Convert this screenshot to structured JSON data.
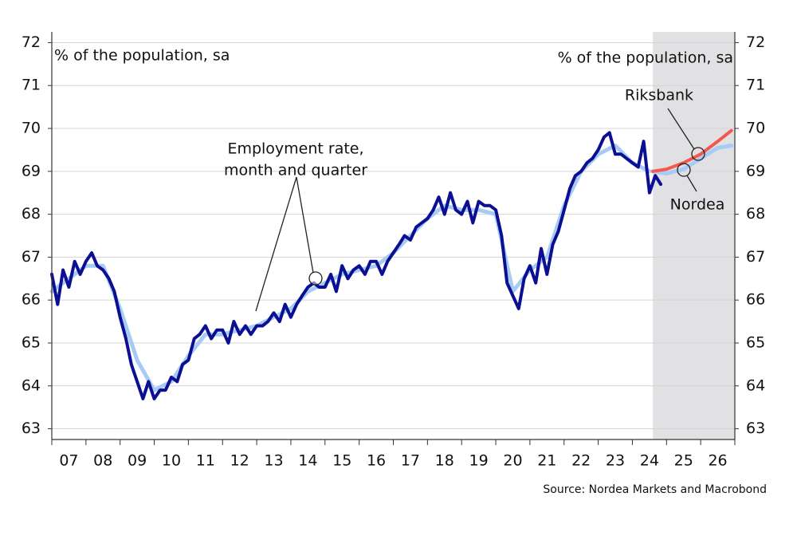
{
  "chart_data": {
    "type": "line",
    "ylabel": "% of the population, sa",
    "y2label": "% of the population, sa",
    "source": "Source: Nordea Markets and Macrobond",
    "annotations": [
      {
        "text": [
          "Employment rate,",
          "month and quarter"
        ]
      },
      {
        "text": [
          "Riksbank"
        ]
      },
      {
        "text": [
          "Nordea"
        ]
      }
    ],
    "shade": [
      2024.6,
      2027
    ],
    "shade_color": "#e1e0e3",
    "grid": true,
    "xlim": [
      2007,
      2027
    ],
    "xticks": [
      {
        "value": 2007,
        "label": "07"
      },
      {
        "value": 2008,
        "label": "08"
      },
      {
        "value": 2009,
        "label": "09"
      },
      {
        "value": 2010,
        "label": "10"
      },
      {
        "value": 2011,
        "label": "11"
      },
      {
        "value": 2012,
        "label": "12"
      },
      {
        "value": 2013,
        "label": "13"
      },
      {
        "value": 2014,
        "label": "14"
      },
      {
        "value": 2015,
        "label": "15"
      },
      {
        "value": 2016,
        "label": "16"
      },
      {
        "value": 2017,
        "label": "17"
      },
      {
        "value": 2018,
        "label": "18"
      },
      {
        "value": 2019,
        "label": "19"
      },
      {
        "value": 2020,
        "label": "20"
      },
      {
        "value": 2021,
        "label": "21"
      },
      {
        "value": 2022,
        "label": "22"
      },
      {
        "value": 2023,
        "label": "23"
      },
      {
        "value": 2024,
        "label": "24"
      },
      {
        "value": 2025,
        "label": "25"
      },
      {
        "value": 2026,
        "label": "26"
      }
    ],
    "ylim": [
      62.75,
      72.25
    ],
    "yticks": [
      63,
      64,
      65,
      66,
      67,
      68,
      69,
      70,
      71,
      72
    ],
    "y2lim": [
      62.75,
      72.25
    ],
    "y2ticks": [
      63,
      64,
      65,
      66,
      67,
      68,
      69,
      70,
      71,
      72
    ],
    "series": [
      {
        "color": "#a8cbf5",
        "width": 5,
        "x": [
          2007.0,
          2007.5,
          2008.0,
          2008.5,
          2009.0,
          2009.5,
          2010.0,
          2010.5,
          2011.0,
          2011.5,
          2012.0,
          2012.5,
          2013.0,
          2013.5,
          2014.0,
          2014.5,
          2015.0,
          2015.5,
          2016.0,
          2016.5,
          2017.0,
          2017.5,
          2018.0,
          2018.5,
          2019.0,
          2019.5,
          2020.0,
          2020.5,
          2021.0,
          2021.5,
          2022.0,
          2022.5,
          2023.0,
          2023.5,
          2024.0,
          2024.5
        ],
        "values": [
          66.2,
          66.5,
          66.8,
          66.8,
          65.8,
          64.6,
          63.9,
          64.1,
          64.7,
          65.2,
          65.2,
          65.3,
          65.4,
          65.6,
          65.8,
          66.2,
          66.4,
          66.6,
          66.7,
          66.8,
          67.1,
          67.5,
          67.9,
          68.2,
          68.1,
          68.1,
          68.0,
          66.2,
          66.7,
          67.0,
          68.2,
          69.0,
          69.4,
          69.6,
          69.2,
          69.0
        ]
      },
      {
        "color": "#0b0f92",
        "width": 4,
        "x": [
          2007.0,
          2007.17,
          2007.33,
          2007.5,
          2007.67,
          2007.83,
          2008.0,
          2008.17,
          2008.33,
          2008.5,
          2008.67,
          2008.83,
          2009.0,
          2009.17,
          2009.33,
          2009.5,
          2009.67,
          2009.83,
          2010.0,
          2010.17,
          2010.33,
          2010.5,
          2010.67,
          2010.83,
          2011.0,
          2011.17,
          2011.33,
          2011.5,
          2011.67,
          2011.83,
          2012.0,
          2012.17,
          2012.33,
          2012.5,
          2012.67,
          2012.83,
          2013.0,
          2013.17,
          2013.33,
          2013.5,
          2013.67,
          2013.83,
          2014.0,
          2014.17,
          2014.33,
          2014.5,
          2014.67,
          2014.83,
          2015.0,
          2015.17,
          2015.33,
          2015.5,
          2015.67,
          2015.83,
          2016.0,
          2016.17,
          2016.33,
          2016.5,
          2016.67,
          2016.83,
          2017.0,
          2017.17,
          2017.33,
          2017.5,
          2017.67,
          2017.83,
          2018.0,
          2018.17,
          2018.33,
          2018.5,
          2018.67,
          2018.83,
          2019.0,
          2019.17,
          2019.33,
          2019.5,
          2019.67,
          2019.83,
          2020.0,
          2020.17,
          2020.33,
          2020.5,
          2020.67,
          2020.83,
          2021.0,
          2021.17,
          2021.33,
          2021.5,
          2021.67,
          2021.83,
          2022.0,
          2022.17,
          2022.33,
          2022.5,
          2022.67,
          2022.83,
          2023.0,
          2023.17,
          2023.33,
          2023.5,
          2023.67,
          2023.83,
          2024.0,
          2024.17,
          2024.33,
          2024.5,
          2024.67,
          2024.83
        ],
        "values": [
          66.6,
          65.9,
          66.7,
          66.3,
          66.9,
          66.6,
          66.9,
          67.1,
          66.8,
          66.7,
          66.5,
          66.2,
          65.6,
          65.1,
          64.5,
          64.1,
          63.7,
          64.1,
          63.7,
          63.9,
          63.9,
          64.2,
          64.1,
          64.5,
          64.6,
          65.1,
          65.2,
          65.4,
          65.1,
          65.3,
          65.3,
          65.0,
          65.5,
          65.2,
          65.4,
          65.2,
          65.4,
          65.4,
          65.5,
          65.7,
          65.5,
          65.9,
          65.6,
          65.9,
          66.1,
          66.3,
          66.4,
          66.3,
          66.3,
          66.6,
          66.2,
          66.8,
          66.5,
          66.7,
          66.8,
          66.6,
          66.9,
          66.9,
          66.6,
          66.9,
          67.1,
          67.3,
          67.5,
          67.4,
          67.7,
          67.8,
          67.9,
          68.1,
          68.4,
          68.0,
          68.5,
          68.1,
          68.0,
          68.3,
          67.8,
          68.3,
          68.2,
          68.2,
          68.1,
          67.5,
          66.4,
          66.1,
          65.8,
          66.5,
          66.8,
          66.4,
          67.2,
          66.6,
          67.3,
          67.6,
          68.1,
          68.6,
          68.9,
          69.0,
          69.2,
          69.3,
          69.5,
          69.8,
          69.9,
          69.4,
          69.4,
          69.3,
          69.2,
          69.1,
          69.7,
          68.5,
          68.9,
          68.7
        ]
      },
      {
        "color": "#a8cbf5",
        "width": 5,
        "x": [
          2024.6,
          2025.0,
          2025.5,
          2026.0,
          2026.5,
          2026.9
        ],
        "values": [
          69.0,
          68.95,
          69.05,
          69.3,
          69.55,
          69.6
        ]
      },
      {
        "color": "#f4574c",
        "width": 4,
        "x": [
          2024.6,
          2025.0,
          2025.5,
          2026.0,
          2026.5,
          2026.9
        ],
        "values": [
          69.0,
          69.05,
          69.2,
          69.4,
          69.7,
          69.95
        ]
      }
    ]
  }
}
